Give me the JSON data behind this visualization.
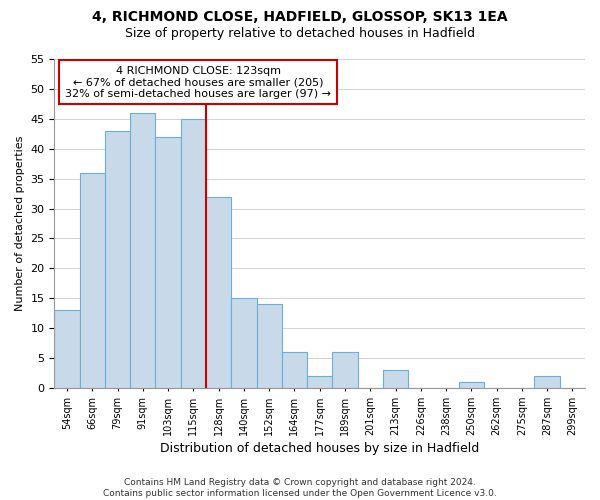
{
  "title": "4, RICHMOND CLOSE, HADFIELD, GLOSSOP, SK13 1EA",
  "subtitle": "Size of property relative to detached houses in Hadfield",
  "xlabel": "Distribution of detached houses by size in Hadfield",
  "ylabel": "Number of detached properties",
  "bar_labels": [
    "54sqm",
    "66sqm",
    "79sqm",
    "91sqm",
    "103sqm",
    "115sqm",
    "128sqm",
    "140sqm",
    "152sqm",
    "164sqm",
    "177sqm",
    "189sqm",
    "201sqm",
    "213sqm",
    "226sqm",
    "238sqm",
    "250sqm",
    "262sqm",
    "275sqm",
    "287sqm",
    "299sqm"
  ],
  "bar_values": [
    13,
    36,
    43,
    46,
    42,
    45,
    32,
    15,
    14,
    6,
    2,
    6,
    0,
    3,
    0,
    0,
    1,
    0,
    0,
    2,
    0
  ],
  "bar_color": "#c8daea",
  "bar_edge_color": "#6baed6",
  "vline_color": "#cc0000",
  "annotation_text": "4 RICHMOND CLOSE: 123sqm\n← 67% of detached houses are smaller (205)\n32% of semi-detached houses are larger (97) →",
  "annotation_box_color": "#ffffff",
  "annotation_box_edge_color": "#cc0000",
  "ylim": [
    0,
    55
  ],
  "yticks": [
    0,
    5,
    10,
    15,
    20,
    25,
    30,
    35,
    40,
    45,
    50,
    55
  ],
  "footer_line1": "Contains HM Land Registry data © Crown copyright and database right 2024.",
  "footer_line2": "Contains public sector information licensed under the Open Government Licence v3.0.",
  "grid_color": "#cccccc",
  "background_color": "#ffffff",
  "title_fontsize": 10,
  "subtitle_fontsize": 9
}
